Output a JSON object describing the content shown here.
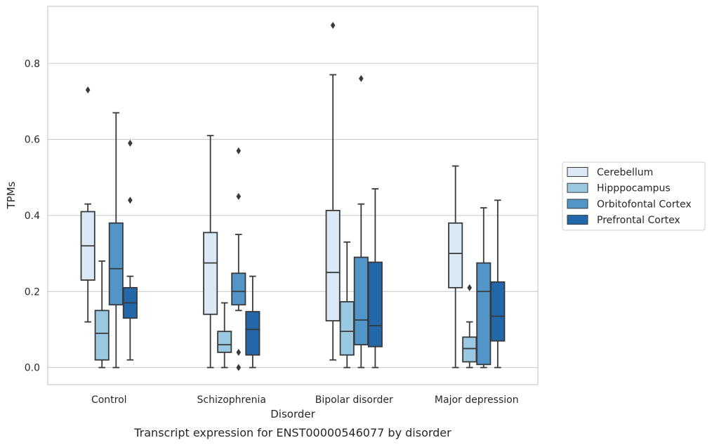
{
  "caption": "Transcript expression for ENST00000546077 by disorder",
  "chart_data": {
    "type": "box",
    "xlabel": "Disorder",
    "ylabel": "TPMs",
    "ylim": [
      -0.045,
      0.95
    ],
    "yticks": [
      0.0,
      0.2,
      0.4,
      0.6,
      0.8
    ],
    "ytick_labels": [
      "0.0",
      "0.2",
      "0.4",
      "0.6",
      "0.8"
    ],
    "grid": "horizontal",
    "legend_position": "right",
    "categories": [
      "Control",
      "Schizophrenia",
      "Bipolar disorder",
      "Major depression"
    ],
    "series": [
      {
        "name": "Cerebellum",
        "color": "#dbe9f6",
        "boxes": [
          {
            "whislo": 0.12,
            "q1": 0.23,
            "med": 0.32,
            "q3": 0.41,
            "whishi": 0.43,
            "fliers": [
              0.73
            ]
          },
          {
            "whislo": 0.0,
            "q1": 0.14,
            "med": 0.275,
            "q3": 0.355,
            "whishi": 0.61,
            "fliers": []
          },
          {
            "whislo": 0.02,
            "q1": 0.123,
            "med": 0.25,
            "q3": 0.413,
            "whishi": 0.77,
            "fliers": [
              0.9
            ]
          },
          {
            "whislo": 0.0,
            "q1": 0.21,
            "med": 0.3,
            "q3": 0.38,
            "whishi": 0.53,
            "fliers": []
          }
        ]
      },
      {
        "name": "Hipppocampus",
        "color": "#9ac8e0",
        "boxes": [
          {
            "whislo": 0.0,
            "q1": 0.02,
            "med": 0.09,
            "q3": 0.15,
            "whishi": 0.28,
            "fliers": []
          },
          {
            "whislo": 0.0,
            "q1": 0.04,
            "med": 0.06,
            "q3": 0.095,
            "whishi": 0.17,
            "fliers": []
          },
          {
            "whislo": 0.0,
            "q1": 0.033,
            "med": 0.095,
            "q3": 0.173,
            "whishi": 0.33,
            "fliers": []
          },
          {
            "whislo": 0.0,
            "q1": 0.015,
            "med": 0.05,
            "q3": 0.08,
            "whishi": 0.12,
            "fliers": [
              0.21
            ]
          }
        ]
      },
      {
        "name": "Orbitofontal Cortex",
        "color": "#5296c9",
        "boxes": [
          {
            "whislo": 0.0,
            "q1": 0.165,
            "med": 0.26,
            "q3": 0.38,
            "whishi": 0.67,
            "fliers": []
          },
          {
            "whislo": 0.15,
            "q1": 0.165,
            "med": 0.2,
            "q3": 0.248,
            "whishi": 0.35,
            "fliers": [
              0.57,
              0.45,
              0.04,
              0.0
            ]
          },
          {
            "whislo": 0.0,
            "q1": 0.06,
            "med": 0.125,
            "q3": 0.29,
            "whishi": 0.43,
            "fliers": [
              0.76
            ]
          },
          {
            "whislo": 0.0,
            "q1": 0.008,
            "med": 0.2,
            "q3": 0.275,
            "whishi": 0.42,
            "fliers": []
          }
        ]
      },
      {
        "name": "Prefrontal Cortex",
        "color": "#2268ab",
        "boxes": [
          {
            "whislo": 0.02,
            "q1": 0.13,
            "med": 0.17,
            "q3": 0.21,
            "whishi": 0.24,
            "fliers": [
              0.59,
              0.44
            ]
          },
          {
            "whislo": 0.0,
            "q1": 0.033,
            "med": 0.1,
            "q3": 0.147,
            "whishi": 0.24,
            "fliers": []
          },
          {
            "whislo": 0.0,
            "q1": 0.055,
            "med": 0.11,
            "q3": 0.277,
            "whishi": 0.47,
            "fliers": []
          },
          {
            "whislo": 0.0,
            "q1": 0.07,
            "med": 0.135,
            "q3": 0.225,
            "whishi": 0.44,
            "fliers": []
          }
        ]
      }
    ]
  }
}
